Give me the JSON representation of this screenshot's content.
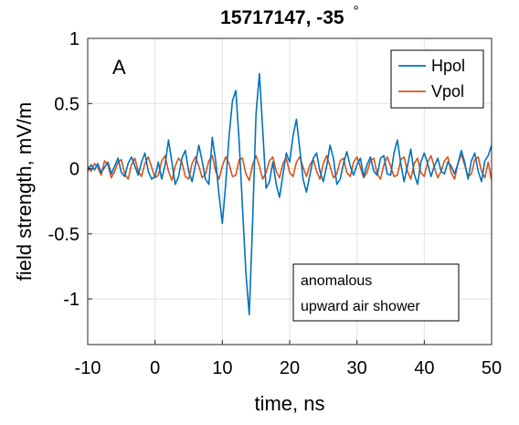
{
  "chart_data": {
    "type": "line",
    "title": "15717147, -35",
    "title_symbol": "°",
    "xlabel": "time, ns",
    "ylabel": "field strength, mV/m",
    "xlim": [
      -10,
      50
    ],
    "ylim": [
      -1.35,
      1
    ],
    "xticks": [
      -10,
      0,
      10,
      20,
      30,
      40,
      50
    ],
    "yticks": [
      -1,
      -0.5,
      0,
      0.5,
      1
    ],
    "grid": true,
    "legend_position": "top-right",
    "panel_label": "A",
    "annotation": [
      "anomalous",
      "upward air shower"
    ],
    "series": [
      {
        "name": "Hpol",
        "color": "#0072BD",
        "x": [
          -10,
          -9.5,
          -9,
          -8.5,
          -8,
          -7.5,
          -7,
          -6.5,
          -6,
          -5.5,
          -5,
          -4.5,
          -4,
          -3.5,
          -3,
          -2.5,
          -2,
          -1.5,
          -1,
          -0.5,
          0,
          0.5,
          1,
          1.5,
          2,
          2.5,
          3,
          3.5,
          4,
          4.5,
          5,
          5.5,
          6,
          6.5,
          7,
          7.5,
          8,
          8.5,
          9,
          9.5,
          10,
          10.5,
          11,
          11.5,
          12,
          12.5,
          13,
          13.5,
          14,
          14.5,
          15,
          15.5,
          16,
          16.5,
          17,
          17.5,
          18,
          18.5,
          19,
          19.5,
          20,
          20.5,
          21,
          21.5,
          22,
          22.5,
          23,
          23.5,
          24,
          24.5,
          25,
          25.5,
          26,
          26.5,
          27,
          27.5,
          28,
          28.5,
          29,
          29.5,
          30,
          30.5,
          31,
          31.5,
          32,
          32.5,
          33,
          33.5,
          34,
          34.5,
          35,
          35.5,
          36,
          36.5,
          37,
          37.5,
          38,
          38.5,
          39,
          39.5,
          40,
          40.5,
          41,
          41.5,
          42,
          42.5,
          43,
          43.5,
          44,
          44.5,
          45,
          45.5,
          46,
          46.5,
          47,
          47.5,
          48,
          48.5,
          49,
          49.5,
          50
        ],
        "values": [
          -0.02,
          0.03,
          -0.01,
          0.04,
          -0.03,
          0.01,
          0.05,
          -0.04,
          0.02,
          0.08,
          -0.03,
          -0.06,
          0.04,
          0.09,
          0.02,
          -0.05,
          0.05,
          0.12,
          -0.02,
          -0.08,
          -0.06,
          0.05,
          -0.08,
          0.03,
          0.22,
          0.05,
          -0.12,
          -0.06,
          0.08,
          0.14,
          -0.02,
          -0.1,
          0.03,
          0.18,
          0.06,
          -0.08,
          -0.12,
          0.24,
          0.06,
          -0.2,
          -0.42,
          -0.12,
          0.25,
          0.52,
          0.6,
          0.2,
          -0.3,
          -0.8,
          -1.12,
          -0.4,
          0.42,
          0.73,
          0.3,
          -0.15,
          -0.1,
          0.05,
          -0.12,
          -0.22,
          -0.05,
          0.12,
          0.05,
          0.25,
          0.38,
          0.15,
          -0.08,
          -0.18,
          -0.05,
          0.08,
          0.12,
          -0.02,
          -0.1,
          0.02,
          0.18,
          0.08,
          -0.12,
          -0.08,
          0.04,
          0.13,
          0.02,
          -0.05,
          0.03,
          0.08,
          -0.06,
          0.03,
          0.09,
          -0.02,
          -0.05,
          0.08,
          0.1,
          -0.04,
          -0.05,
          0.12,
          0.22,
          0.04,
          -0.1,
          0.02,
          0.15,
          -0.04,
          -0.12,
          0.05,
          0.12,
          0.04,
          -0.06,
          0.02,
          0.08,
          -0.02,
          -0.04,
          0.05,
          0.02,
          -0.04,
          0.04,
          0.14,
          0.05,
          -0.08,
          0.06,
          0.12,
          -0.02,
          -0.1,
          0.06,
          0.1,
          0.18
        ]
      },
      {
        "name": "Vpol",
        "color": "#D95319",
        "x": [
          -10,
          -9.5,
          -9,
          -8.5,
          -8,
          -7.5,
          -7,
          -6.5,
          -6,
          -5.5,
          -5,
          -4.5,
          -4,
          -3.5,
          -3,
          -2.5,
          -2,
          -1.5,
          -1,
          -0.5,
          0,
          0.5,
          1,
          1.5,
          2,
          2.5,
          3,
          3.5,
          4,
          4.5,
          5,
          5.5,
          6,
          6.5,
          7,
          7.5,
          8,
          8.5,
          9,
          9.5,
          10,
          10.5,
          11,
          11.5,
          12,
          12.5,
          13,
          13.5,
          14,
          14.5,
          15,
          15.5,
          16,
          16.5,
          17,
          17.5,
          18,
          18.5,
          19,
          19.5,
          20,
          20.5,
          21,
          21.5,
          22,
          22.5,
          23,
          23.5,
          24,
          24.5,
          25,
          25.5,
          26,
          26.5,
          27,
          27.5,
          28,
          28.5,
          29,
          29.5,
          30,
          30.5,
          31,
          31.5,
          32,
          32.5,
          33,
          33.5,
          34,
          34.5,
          35,
          35.5,
          36,
          36.5,
          37,
          37.5,
          38,
          38.5,
          39,
          39.5,
          40,
          40.5,
          41,
          41.5,
          42,
          42.5,
          43,
          43.5,
          44,
          44.5,
          45,
          45.5,
          46,
          46.5,
          47,
          47.5,
          48,
          48.5,
          49,
          49.5,
          50
        ],
        "values": [
          0.02,
          -0.02,
          0.04,
          0.01,
          -0.05,
          0.06,
          0.03,
          -0.07,
          -0.02,
          0.05,
          0.07,
          -0.04,
          -0.08,
          0.03,
          0.08,
          -0.02,
          -0.06,
          0.04,
          0.09,
          0.01,
          -0.07,
          -0.05,
          0.06,
          0.1,
          -0.02,
          -0.09,
          0.02,
          0.08,
          0.05,
          -0.06,
          -0.08,
          0.04,
          0.09,
          0.02,
          -0.07,
          -0.04,
          0.06,
          0.1,
          -0.02,
          -0.08,
          0.02,
          0.09,
          0.04,
          -0.06,
          -0.05,
          0.07,
          0.08,
          -0.04,
          -0.09,
          0.03,
          0.1,
          0.02,
          -0.08,
          -0.03,
          0.06,
          0.09,
          -0.02,
          -0.07,
          0.04,
          0.08,
          -0.03,
          -0.06,
          0.05,
          0.09,
          0.01,
          -0.06,
          0.03,
          0.07,
          -0.02,
          -0.08,
          0.04,
          0.1,
          0.02,
          -0.07,
          -0.04,
          0.06,
          0.08,
          -0.03,
          -0.06,
          0.05,
          0.09,
          0.01,
          -0.07,
          -0.03,
          0.06,
          0.08,
          -0.04,
          -0.08,
          0.03,
          0.09,
          0.02,
          -0.06,
          -0.05,
          0.07,
          0.09,
          -0.02,
          -0.08,
          0.04,
          0.08,
          -0.03,
          -0.06,
          0.05,
          0.1,
          0.01,
          -0.07,
          -0.02,
          0.06,
          0.09,
          -0.03,
          -0.08,
          0.04,
          0.11,
          0.03,
          -0.06,
          -0.04,
          0.07,
          0.09,
          -0.02,
          -0.07,
          0.05,
          -0.09
        ]
      }
    ]
  }
}
